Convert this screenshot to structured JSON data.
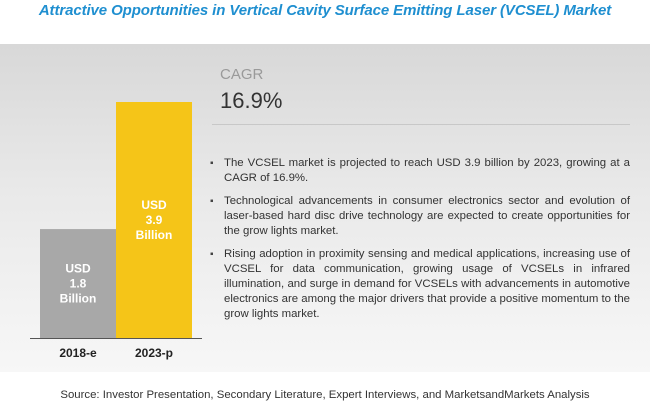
{
  "title": "Attractive Opportunities in Vertical Cavity Surface Emitting Laser (VCSEL) Market",
  "cagr": {
    "label": "CAGR",
    "value": "16.9%"
  },
  "bullets": [
    "The VCSEL market is projected to reach USD 3.9 billion by 2023, growing at a CAGR of 16.9%.",
    "Technological advancements in consumer electronics sector and evolution of laser-based hard disc drive technology are expected to create opportunities for the grow lights market.",
    "Rising adoption in proximity sensing and medical applications, increasing use of VCSEL for data communication, growing usage of VCSELs in infrared illumination, and surge in demand for VCSELs with advancements in automotive electronics are among the major drivers that provide a positive momentum to the grow lights market."
  ],
  "source": "Source: Investor Presentation, Secondary Literature, Expert Interviews, and MarketsandMarkets Analysis",
  "chart_data": {
    "type": "bar",
    "categories": [
      "2018-e",
      "2023-p"
    ],
    "values": [
      1.8,
      3.9
    ],
    "bar_labels": [
      [
        "USD",
        "1.8",
        "Billion"
      ],
      [
        "USD",
        "3.9",
        "Billion"
      ]
    ],
    "colors": [
      "#a8a8a8",
      "#f5c518"
    ],
    "label_colors": [
      "#ffffff",
      "#ffffff"
    ],
    "ylim": [
      0,
      3.9
    ],
    "title": "",
    "xlabel": "",
    "ylabel": ""
  }
}
